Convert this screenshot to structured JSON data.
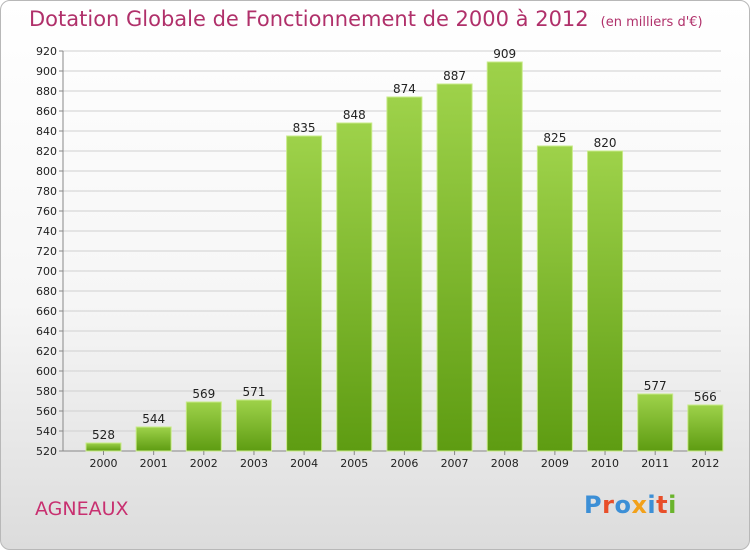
{
  "title": "Dotation Globale de Fonctionnement de 2000 à 2012",
  "units": "(en milliers d'€)",
  "commune": "AGNEAUX",
  "logo": "Proxiti",
  "colors": {
    "title": "#b0306a",
    "bar_light": "#9ed24a",
    "bar_dark": "#5e9c12",
    "logo": [
      "#3c8fd6",
      "#e84f2a",
      "#3c8fd6",
      "#f2a11a",
      "#3c8fd6",
      "#e84f2a",
      "#6ab42c"
    ]
  },
  "chart_data": {
    "type": "bar",
    "categories": [
      "2000",
      "2001",
      "2002",
      "2003",
      "2004",
      "2005",
      "2006",
      "2007",
      "2008",
      "2009",
      "2010",
      "2011",
      "2012"
    ],
    "values": [
      528,
      544,
      569,
      571,
      835,
      848,
      874,
      887,
      909,
      825,
      820,
      577,
      566
    ],
    "ylim": [
      520,
      920
    ],
    "yticks": [
      520,
      540,
      560,
      580,
      600,
      620,
      640,
      660,
      680,
      700,
      720,
      740,
      760,
      780,
      800,
      820,
      840,
      860,
      880,
      900,
      920
    ],
    "grid": true,
    "xlabel": "",
    "ylabel": ""
  }
}
